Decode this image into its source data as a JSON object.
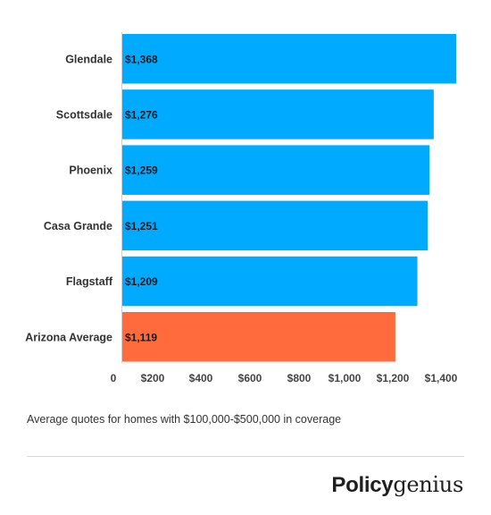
{
  "chart_data": {
    "type": "bar",
    "orientation": "horizontal",
    "categories": [
      "Glendale",
      "Scottsdale",
      "Phoenix",
      "Casa Grande",
      "Flagstaff",
      "Arizona Average"
    ],
    "values": [
      1368,
      1276,
      1259,
      1251,
      1209,
      1119
    ],
    "value_labels": [
      "$1,368",
      "$1,276",
      "$1,259",
      "$1,251",
      "$1,209",
      "$1,119"
    ],
    "highlight_category": "Arizona Average",
    "colors": {
      "default": "#00aaff",
      "highlight": "#ff6b3d"
    },
    "x_ticks": [
      0,
      200,
      400,
      600,
      800,
      1000,
      1200,
      1400
    ],
    "x_tick_labels": [
      "0",
      "$200",
      "$400",
      "$600",
      "$800",
      "$1,000",
      "$1,200",
      "$1,400"
    ],
    "xlim": [
      0,
      1400
    ],
    "grid": false,
    "legend": "none"
  },
  "caption": "Average quotes for homes with $100,000-$500,000 in coverage",
  "logo": {
    "bold": "Policy",
    "light": "genius"
  }
}
